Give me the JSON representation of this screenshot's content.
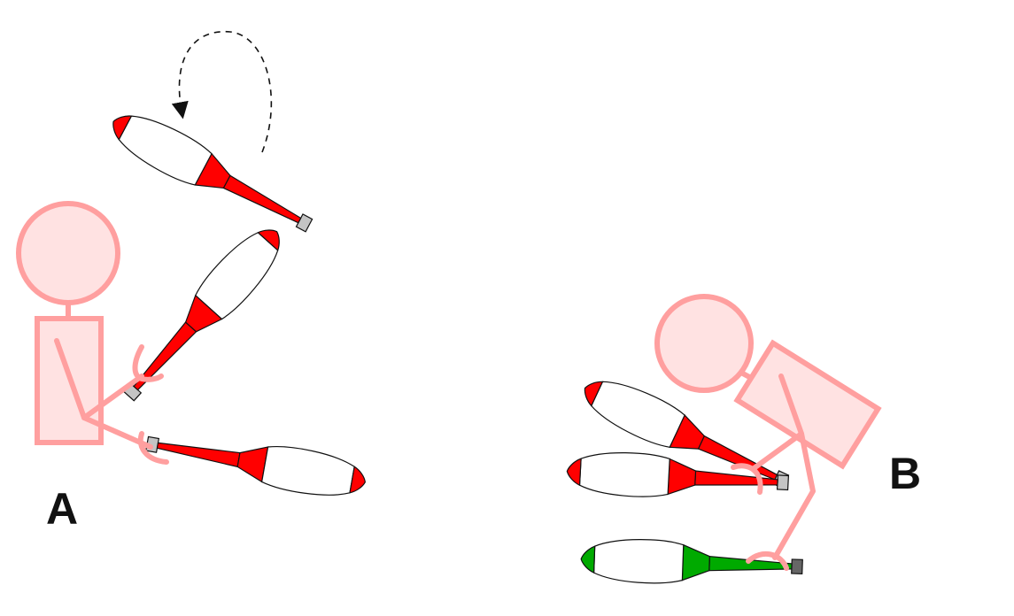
{
  "labels": {
    "a": "A",
    "b": "B"
  },
  "colors": {
    "figure_stroke": "#ff9f9f",
    "figure_fill": "#ffe2e2",
    "club_red": "#ff0000",
    "club_red_dark": "#e00000",
    "club_green": "#00aa00",
    "club_body": "#ffffff",
    "knob": "#c4c4c4",
    "knob_dark": "#666666",
    "outline": "#111111",
    "arrow": "#111111"
  },
  "figures": [
    {
      "name": "juggler-a",
      "caption": "a",
      "clubs": [
        "red",
        "red",
        "red"
      ],
      "rotation_arrow": true
    },
    {
      "name": "juggler-b",
      "caption": "b",
      "clubs": [
        "red",
        "red",
        "green"
      ],
      "rotation_arrow": false
    }
  ]
}
